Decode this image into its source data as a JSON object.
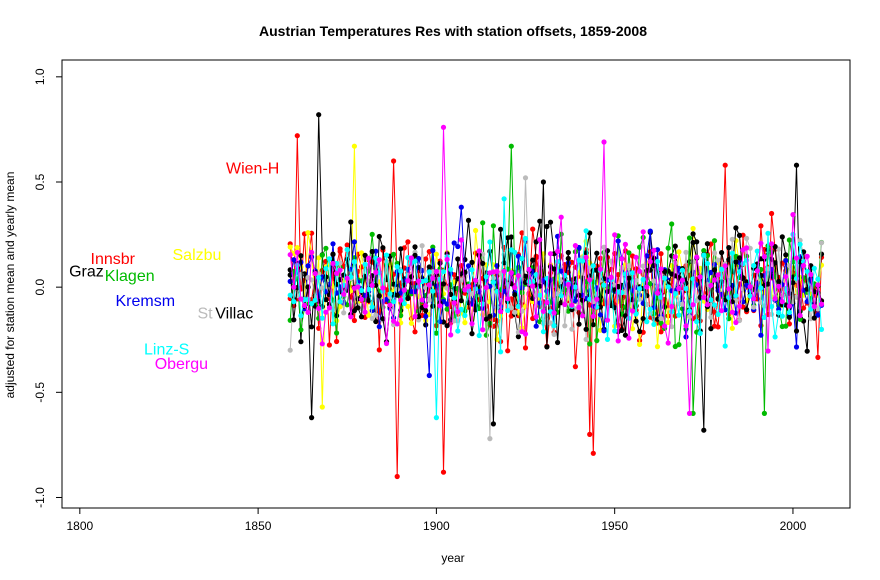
{
  "chart_data": {
    "type": "line",
    "title": "Austrian Temperatures Res with station offsets, 1859-2008",
    "xlabel": "year",
    "ylabel": "adjusted for station mean and yearly mean",
    "xlim": [
      1795,
      2016
    ],
    "ylim": [
      -1.05,
      1.08
    ],
    "x_ticks": [
      1800,
      1850,
      1900,
      1950,
      2000
    ],
    "x_tick_labels": [
      "1800",
      "1850",
      "1900",
      "1950",
      "2000"
    ],
    "y_ticks": [
      -1.0,
      -0.5,
      0.0,
      0.5,
      1.0
    ],
    "y_tick_labels": [
      "-1.0",
      "-0.5",
      "0.0",
      "0.5",
      "1.0"
    ],
    "x_start": 1859,
    "x_end": 2008,
    "series": [
      {
        "name": "Wien-H",
        "color": "#ff0000",
        "label_x": 1841,
        "label_y": 0.56,
        "amp": 0.26,
        "seed": 11,
        "extremes": [
          [
            1861,
            0.72
          ],
          [
            1889,
            -0.9
          ],
          [
            1902,
            -0.88
          ],
          [
            1943,
            -0.7
          ],
          [
            1981,
            0.58
          ]
        ]
      },
      {
        "name": "Innsbr",
        "color": "#ff0000",
        "label_x": 1803,
        "label_y": 0.13,
        "amp": 0.2,
        "seed": 23,
        "extremes": [
          [
            1944,
            -0.79
          ],
          [
            1888,
            0.6
          ]
        ]
      },
      {
        "name": "Salzbu",
        "color": "#ffff00",
        "label_x": 1826,
        "label_y": 0.15,
        "amp": 0.22,
        "seed": 37,
        "extremes": [
          [
            1877,
            0.67
          ],
          [
            1868,
            -0.57
          ]
        ]
      },
      {
        "name": "Graz",
        "color": "#000000",
        "label_x": 1797,
        "label_y": 0.07,
        "amp": 0.27,
        "seed": 41,
        "extremes": [
          [
            1867,
            0.82
          ],
          [
            1865,
            -0.62
          ],
          [
            1975,
            -0.68
          ],
          [
            2001,
            0.58
          ]
        ]
      },
      {
        "name": "Klagen",
        "color": "#00bb00",
        "label_x": 1807,
        "label_y": 0.05,
        "amp": 0.23,
        "seed": 53,
        "extremes": [
          [
            1921,
            0.67
          ],
          [
            1972,
            -0.6
          ],
          [
            1992,
            -0.6
          ]
        ]
      },
      {
        "name": "Kremsm",
        "color": "#0000ee",
        "label_x": 1810,
        "label_y": -0.07,
        "amp": 0.2,
        "seed": 61,
        "extremes": [
          [
            1907,
            0.38
          ],
          [
            1898,
            -0.42
          ]
        ]
      },
      {
        "name": "St",
        "color": "#bbbbbb",
        "label_x": 1833,
        "label_y": -0.13,
        "amp": 0.2,
        "seed": 71,
        "extremes": [
          [
            1915,
            -0.72
          ],
          [
            1925,
            0.52
          ]
        ]
      },
      {
        "name": "Villac",
        "color": "#000000",
        "label_x": 1838,
        "label_y": -0.13,
        "amp": 0.21,
        "seed": 79,
        "extremes": [
          [
            1916,
            -0.65
          ],
          [
            1930,
            0.5
          ]
        ]
      },
      {
        "name": "Linz-S",
        "color": "#00ffff",
        "label_x": 1818,
        "label_y": -0.3,
        "amp": 0.21,
        "seed": 89,
        "extremes": [
          [
            1900,
            -0.62
          ],
          [
            1919,
            0.42
          ]
        ]
      },
      {
        "name": "Obergu",
        "color": "#ff00ff",
        "label_x": 1821,
        "label_y": -0.37,
        "amp": 0.24,
        "seed": 97,
        "extremes": [
          [
            1902,
            0.76
          ],
          [
            1947,
            0.69
          ],
          [
            1971,
            -0.6
          ]
        ]
      }
    ]
  }
}
